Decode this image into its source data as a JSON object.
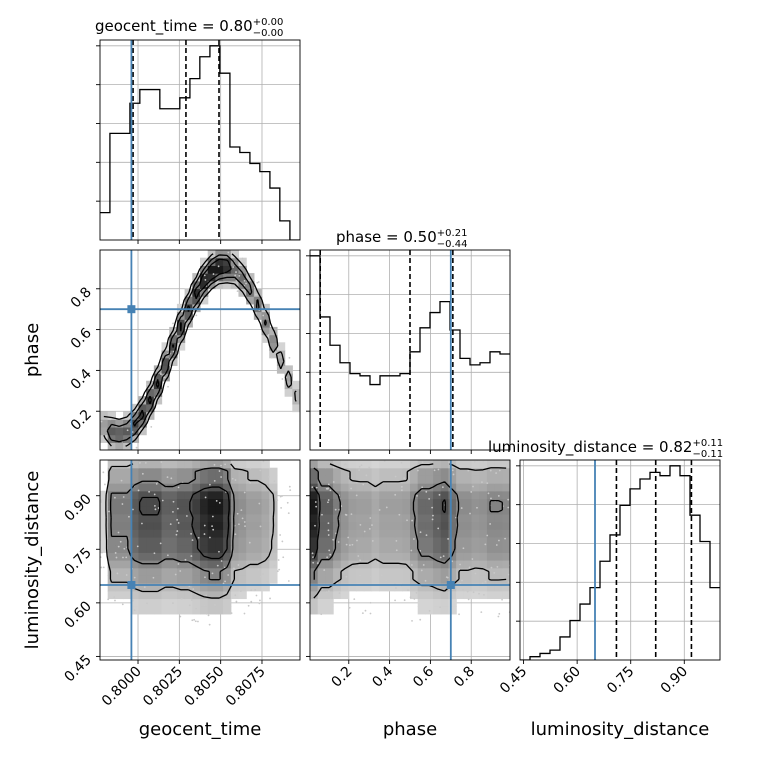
{
  "chart_data": {
    "type": "corner",
    "parameters": [
      "geocent_time",
      "phase",
      "luminosity_distance"
    ],
    "truths": {
      "geocent_time": 0.7996,
      "phase": 0.7,
      "luminosity_distance": 0.65
    },
    "marginals": {
      "geocent_time": {
        "title_main": "geocent_time = 0.80",
        "title_sup": "+0.00",
        "title_sub": "−0.00",
        "quantiles": [
          0.7997,
          0.8029,
          0.8049
        ],
        "xlim": [
          0.7977,
          0.8098
        ],
        "bin_edges": [
          0.7977,
          0.7983,
          0.7989,
          0.79951,
          0.80011,
          0.80072,
          0.80132,
          0.80193,
          0.80253,
          0.80314,
          0.80374,
          0.80435,
          0.80495,
          0.80556,
          0.80616,
          0.80677,
          0.80737,
          0.80798,
          0.80858,
          0.80919,
          0.8098
        ],
        "counts": [
          10,
          39,
          39,
          50,
          55,
          55,
          48,
          48,
          52,
          59,
          67,
          71,
          61,
          34,
          32,
          28,
          25,
          19,
          7,
          0
        ]
      },
      "phase": {
        "title_main": "phase = 0.50",
        "title_sup": "+0.21",
        "title_sub": "−0.44",
        "quantiles": [
          0.06,
          0.5,
          0.71
        ],
        "xlim": [
          0.01,
          0.99
        ],
        "bin_edges": [
          0.01,
          0.059,
          0.108,
          0.157,
          0.206,
          0.255,
          0.304,
          0.353,
          0.402,
          0.451,
          0.5,
          0.549,
          0.598,
          0.647,
          0.696,
          0.745,
          0.794,
          0.843,
          0.892,
          0.941,
          0.99
        ],
        "counts": [
          89,
          61,
          48,
          40,
          35,
          34,
          30,
          34,
          34,
          35,
          45,
          56,
          63,
          68,
          55,
          42,
          39,
          40,
          45,
          44
        ]
      },
      "luminosity_distance": {
        "title_main": "luminosity_distance = 0.82",
        "title_sup": "+0.11",
        "title_sub": "−0.11",
        "quantiles": [
          0.71,
          0.82,
          0.92
        ],
        "xlim": [
          0.44,
          1.0
        ],
        "bin_edges": [
          0.44,
          0.468,
          0.496,
          0.524,
          0.552,
          0.58,
          0.608,
          0.636,
          0.664,
          0.692,
          0.72,
          0.748,
          0.776,
          0.804,
          0.832,
          0.86,
          0.888,
          0.916,
          0.944,
          0.972,
          1.0
        ],
        "counts": [
          0,
          1,
          2,
          3,
          7,
          12,
          17,
          22,
          30,
          38,
          47,
          52,
          55,
          57,
          56,
          59,
          56,
          44,
          36,
          22
        ]
      }
    },
    "axes": {
      "geocent_time": {
        "label": "geocent_time",
        "ticks": [
          0.8,
          0.8025,
          0.805,
          0.8075
        ],
        "tick_labels": [
          "0.8000",
          "0.8025",
          "0.8050",
          "0.8075"
        ]
      },
      "phase": {
        "label": "phase",
        "ticks": [
          0.2,
          0.4,
          0.6,
          0.8
        ],
        "tick_labels": [
          "0.2",
          "0.4",
          "0.6",
          "0.8"
        ]
      },
      "luminosity_distance": {
        "label": "luminosity_distance",
        "ticks": [
          0.45,
          0.6,
          0.75,
          0.9
        ],
        "tick_labels": [
          "0.45",
          "0.60",
          "0.75",
          "0.90"
        ]
      }
    },
    "grid": true,
    "colors": {
      "truth": "#4682b4",
      "hist": "#000000",
      "quantile": "#000000",
      "contour": "#000000",
      "density_dark": "#1a1a1a",
      "density_light": "#f2f2f2",
      "scatter": "#c8c8c8"
    }
  }
}
